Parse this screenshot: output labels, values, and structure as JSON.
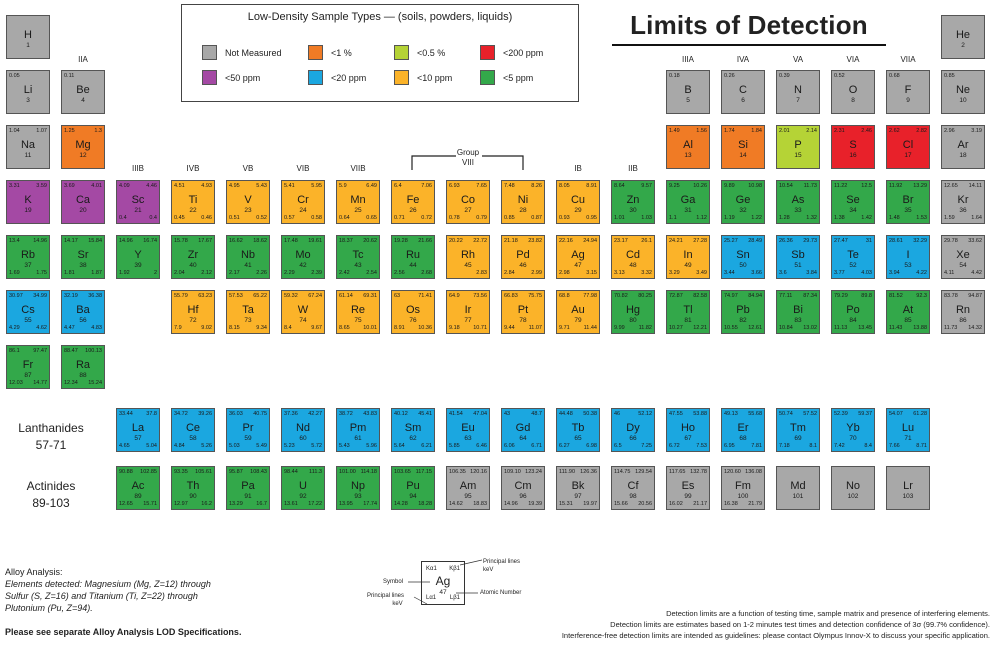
{
  "title": "Limits of Detection",
  "legend": {
    "title": "Low-Density Sample Types — (soils, powders, liquids)",
    "items": [
      {
        "label": "Not Measured",
        "color": "#a8a8a8"
      },
      {
        "label": "<1 %",
        "color": "#f07b25"
      },
      {
        "label": "<0.5 %",
        "color": "#b5d336"
      },
      {
        "label": "<200 ppm",
        "color": "#e8212a"
      },
      {
        "label": "<50 ppm",
        "color": "#a449a4"
      },
      {
        "label": "<20 ppm",
        "color": "#1ba7e0"
      },
      {
        "label": "<10 ppm",
        "color": "#fbb329"
      },
      {
        "label": "<5 ppm",
        "color": "#33a84a"
      }
    ]
  },
  "group_labels": {
    "IIA": "IIA",
    "IIIB": "IIIB",
    "IVB": "IVB",
    "VB": "VB",
    "VIB": "VIB",
    "VIIB": "VIIB",
    "group_viii_line1": "Group",
    "group_viii_line2": "VIII",
    "IB": "IB",
    "IIB": "IIB",
    "IIIA": "IIIA",
    "IVA": "IVA",
    "VA": "VA",
    "VIA": "VIA",
    "VIIA": "VIIA"
  },
  "series": {
    "lanthanides_name": "Lanthanides",
    "lanthanides_range": "57-71",
    "actinides_name": "Actinides",
    "actinides_range": "89-103"
  },
  "elements": [
    {
      "s": "H",
      "n": "1",
      "c": "#a8a8a8",
      "ka": "",
      "kb": "",
      "la": "",
      "lb": ""
    },
    {
      "s": "He",
      "n": "2",
      "c": "#a8a8a8",
      "ka": "",
      "kb": "",
      "la": "",
      "lb": ""
    },
    {
      "s": "Li",
      "n": "3",
      "c": "#a8a8a8",
      "ka": "0.05",
      "kb": "",
      "la": "",
      "lb": ""
    },
    {
      "s": "Be",
      "n": "4",
      "c": "#a8a8a8",
      "ka": "0.11",
      "kb": "",
      "la": "",
      "lb": ""
    },
    {
      "s": "B",
      "n": "5",
      "c": "#a8a8a8",
      "ka": "0.18",
      "kb": "",
      "la": "",
      "lb": ""
    },
    {
      "s": "C",
      "n": "6",
      "c": "#a8a8a8",
      "ka": "0.26",
      "kb": "",
      "la": "",
      "lb": ""
    },
    {
      "s": "N",
      "n": "7",
      "c": "#a8a8a8",
      "ka": "0.39",
      "kb": "",
      "la": "",
      "lb": ""
    },
    {
      "s": "O",
      "n": "8",
      "c": "#a8a8a8",
      "ka": "0.52",
      "kb": "",
      "la": "",
      "lb": ""
    },
    {
      "s": "F",
      "n": "9",
      "c": "#a8a8a8",
      "ka": "0.68",
      "kb": "",
      "la": "",
      "lb": ""
    },
    {
      "s": "Ne",
      "n": "10",
      "c": "#a8a8a8",
      "ka": "0.85",
      "kb": "",
      "la": "",
      "lb": ""
    },
    {
      "s": "Na",
      "n": "11",
      "c": "#a8a8a8",
      "ka": "1.04",
      "kb": "1.07",
      "la": "",
      "lb": ""
    },
    {
      "s": "Mg",
      "n": "12",
      "c": "#f07b25",
      "ka": "1.25",
      "kb": "1.3",
      "la": "",
      "lb": ""
    },
    {
      "s": "Al",
      "n": "13",
      "c": "#f07b25",
      "ka": "1.49",
      "kb": "1.56",
      "la": "",
      "lb": ""
    },
    {
      "s": "Si",
      "n": "14",
      "c": "#f07b25",
      "ka": "1.74",
      "kb": "1.84",
      "la": "",
      "lb": ""
    },
    {
      "s": "P",
      "n": "15",
      "c": "#b5d336",
      "ka": "2.01",
      "kb": "2.14",
      "la": "",
      "lb": ""
    },
    {
      "s": "S",
      "n": "16",
      "c": "#e8212a",
      "ka": "2.31",
      "kb": "2.46",
      "la": "",
      "lb": ""
    },
    {
      "s": "Cl",
      "n": "17",
      "c": "#e8212a",
      "ka": "2.62",
      "kb": "2.82",
      "la": "",
      "lb": ""
    },
    {
      "s": "Ar",
      "n": "18",
      "c": "#a8a8a8",
      "ka": "2.96",
      "kb": "3.19",
      "la": "",
      "lb": ""
    },
    {
      "s": "K",
      "n": "19",
      "c": "#a449a4",
      "ka": "3.31",
      "kb": "3.59",
      "la": "",
      "lb": ""
    },
    {
      "s": "Ca",
      "n": "20",
      "c": "#a449a4",
      "ka": "3.69",
      "kb": "4.01",
      "la": "",
      "lb": ""
    },
    {
      "s": "Sc",
      "n": "21",
      "c": "#a449a4",
      "ka": "4.09",
      "kb": "4.46",
      "la": "0.4",
      "lb": "0.4"
    },
    {
      "s": "Ti",
      "n": "22",
      "c": "#fbb329",
      "ka": "4.51",
      "kb": "4.93",
      "la": "0.45",
      "lb": "0.46"
    },
    {
      "s": "V",
      "n": "23",
      "c": "#fbb329",
      "ka": "4.95",
      "kb": "5.43",
      "la": "0.51",
      "lb": "0.52"
    },
    {
      "s": "Cr",
      "n": "24",
      "c": "#fbb329",
      "ka": "5.41",
      "kb": "5.95",
      "la": "0.57",
      "lb": "0.58"
    },
    {
      "s": "Mn",
      "n": "25",
      "c": "#fbb329",
      "ka": "5.9",
      "kb": "6.49",
      "la": "0.64",
      "lb": "0.65"
    },
    {
      "s": "Fe",
      "n": "26",
      "c": "#fbb329",
      "ka": "6.4",
      "kb": "7.06",
      "la": "0.71",
      "lb": "0.72"
    },
    {
      "s": "Co",
      "n": "27",
      "c": "#fbb329",
      "ka": "6.93",
      "kb": "7.65",
      "la": "0.78",
      "lb": "0.79"
    },
    {
      "s": "Ni",
      "n": "28",
      "c": "#fbb329",
      "ka": "7.48",
      "kb": "8.26",
      "la": "0.85",
      "lb": "0.87"
    },
    {
      "s": "Cu",
      "n": "29",
      "c": "#fbb329",
      "ka": "8.05",
      "kb": "8.91",
      "la": "0.93",
      "lb": "0.95"
    },
    {
      "s": "Zn",
      "n": "30",
      "c": "#33a84a",
      "ka": "8.64",
      "kb": "9.57",
      "la": "1.01",
      "lb": "1.03"
    },
    {
      "s": "Ga",
      "n": "31",
      "c": "#33a84a",
      "ka": "9.25",
      "kb": "10.26",
      "la": "1.1",
      "lb": "1.12"
    },
    {
      "s": "Ge",
      "n": "32",
      "c": "#33a84a",
      "ka": "9.89",
      "kb": "10.98",
      "la": "1.19",
      "lb": "1.22"
    },
    {
      "s": "As",
      "n": "33",
      "c": "#33a84a",
      "ka": "10.54",
      "kb": "11.73",
      "la": "1.28",
      "lb": "1.32"
    },
    {
      "s": "Se",
      "n": "34",
      "c": "#33a84a",
      "ka": "11.22",
      "kb": "12.5",
      "la": "1.38",
      "lb": "1.42"
    },
    {
      "s": "Br",
      "n": "35",
      "c": "#33a84a",
      "ka": "11.92",
      "kb": "13.29",
      "la": "1.48",
      "lb": "1.53"
    },
    {
      "s": "Kr",
      "n": "36",
      "c": "#a8a8a8",
      "ka": "12.65",
      "kb": "14.11",
      "la": "1.59",
      "lb": "1.64"
    },
    {
      "s": "Rb",
      "n": "37",
      "c": "#33a84a",
      "ka": "13.4",
      "kb": "14.96",
      "la": "1.69",
      "lb": "1.75"
    },
    {
      "s": "Sr",
      "n": "38",
      "c": "#33a84a",
      "ka": "14.17",
      "kb": "15.84",
      "la": "1.81",
      "lb": "1.87"
    },
    {
      "s": "Y",
      "n": "39",
      "c": "#33a84a",
      "ka": "14.96",
      "kb": "16.74",
      "la": "1.92",
      "lb": "2"
    },
    {
      "s": "Zr",
      "n": "40",
      "c": "#33a84a",
      "ka": "15.78",
      "kb": "17.67",
      "la": "2.04",
      "lb": "2.12"
    },
    {
      "s": "Nb",
      "n": "41",
      "c": "#33a84a",
      "ka": "16.62",
      "kb": "18.62",
      "la": "2.17",
      "lb": "2.26"
    },
    {
      "s": "Mo",
      "n": "42",
      "c": "#33a84a",
      "ka": "17.48",
      "kb": "19.61",
      "la": "2.29",
      "lb": "2.39"
    },
    {
      "s": "Tc",
      "n": "43",
      "c": "#33a84a",
      "ka": "18.37",
      "kb": "20.62",
      "la": "2.42",
      "lb": "2.54"
    },
    {
      "s": "Ru",
      "n": "44",
      "c": "#33a84a",
      "ka": "19.28",
      "kb": "21.66",
      "la": "2.56",
      "lb": "2.68"
    },
    {
      "s": "Rh",
      "n": "45",
      "c": "#fbb329",
      "ka": "20.22",
      "kb": "22.72",
      "la": "",
      "lb": "2.83"
    },
    {
      "s": "Pd",
      "n": "46",
      "c": "#fbb329",
      "ka": "21.18",
      "kb": "23.82",
      "la": "2.84",
      "lb": "2.99"
    },
    {
      "s": "Ag",
      "n": "47",
      "c": "#fbb329",
      "ka": "22.16",
      "kb": "24.94",
      "la": "2.98",
      "lb": "3.15"
    },
    {
      "s": "Cd",
      "n": "48",
      "c": "#fbb329",
      "ka": "23.17",
      "kb": "26.1",
      "la": "3.13",
      "lb": "3.32"
    },
    {
      "s": "In",
      "n": "49",
      "c": "#fbb329",
      "ka": "24.21",
      "kb": "27.28",
      "la": "3.29",
      "lb": "3.49"
    },
    {
      "s": "Sn",
      "n": "50",
      "c": "#1ba7e0",
      "ka": "25.27",
      "kb": "28.49",
      "la": "3.44",
      "lb": "3.66"
    },
    {
      "s": "Sb",
      "n": "51",
      "c": "#1ba7e0",
      "ka": "26.36",
      "kb": "29.73",
      "la": "3.6",
      "lb": "3.84"
    },
    {
      "s": "Te",
      "n": "52",
      "c": "#1ba7e0",
      "ka": "27.47",
      "kb": "31",
      "la": "3.77",
      "lb": "4.03"
    },
    {
      "s": "I",
      "n": "53",
      "c": "#1ba7e0",
      "ka": "28.61",
      "kb": "32.29",
      "la": "3.94",
      "lb": "4.22"
    },
    {
      "s": "Xe",
      "n": "54",
      "c": "#a8a8a8",
      "ka": "29.78",
      "kb": "33.62",
      "la": "4.11",
      "lb": "4.42"
    },
    {
      "s": "Cs",
      "n": "55",
      "c": "#1ba7e0",
      "ka": "30.97",
      "kb": "34.99",
      "la": "4.29",
      "lb": "4.62"
    },
    {
      "s": "Ba",
      "n": "56",
      "c": "#1ba7e0",
      "ka": "32.19",
      "kb": "36.38",
      "la": "4.47",
      "lb": "4.83"
    },
    {
      "s": "Hf",
      "n": "72",
      "c": "#fbb329",
      "ka": "55.79",
      "kb": "63.23",
      "la": "7.9",
      "lb": "9.02"
    },
    {
      "s": "Ta",
      "n": "73",
      "c": "#fbb329",
      "ka": "57.53",
      "kb": "65.22",
      "la": "8.15",
      "lb": "9.34"
    },
    {
      "s": "W",
      "n": "74",
      "c": "#fbb329",
      "ka": "59.32",
      "kb": "67.24",
      "la": "8.4",
      "lb": "9.67"
    },
    {
      "s": "Re",
      "n": "75",
      "c": "#fbb329",
      "ka": "61.14",
      "kb": "69.31",
      "la": "8.65",
      "lb": "10.01"
    },
    {
      "s": "Os",
      "n": "76",
      "c": "#fbb329",
      "ka": "63",
      "kb": "71.41",
      "la": "8.91",
      "lb": "10.36"
    },
    {
      "s": "Ir",
      "n": "77",
      "c": "#fbb329",
      "ka": "64.9",
      "kb": "73.56",
      "la": "9.18",
      "lb": "10.71"
    },
    {
      "s": "Pt",
      "n": "78",
      "c": "#fbb329",
      "ka": "66.83",
      "kb": "75.75",
      "la": "9.44",
      "lb": "11.07"
    },
    {
      "s": "Au",
      "n": "79",
      "c": "#fbb329",
      "ka": "68.8",
      "kb": "77.98",
      "la": "9.71",
      "lb": "11.44"
    },
    {
      "s": "Hg",
      "n": "80",
      "c": "#33a84a",
      "ka": "70.82",
      "kb": "80.25",
      "la": "9.99",
      "lb": "11.82"
    },
    {
      "s": "Tl",
      "n": "81",
      "c": "#33a84a",
      "ka": "72.87",
      "kb": "82.58",
      "la": "10.27",
      "lb": "12.21"
    },
    {
      "s": "Pb",
      "n": "82",
      "c": "#33a84a",
      "ka": "74.97",
      "kb": "84.94",
      "la": "10.55",
      "lb": "12.61"
    },
    {
      "s": "Bi",
      "n": "83",
      "c": "#33a84a",
      "ka": "77.11",
      "kb": "87.34",
      "la": "10.84",
      "lb": "13.02"
    },
    {
      "s": "Po",
      "n": "84",
      "c": "#33a84a",
      "ka": "79.29",
      "kb": "89.8",
      "la": "11.13",
      "lb": "13.45"
    },
    {
      "s": "At",
      "n": "85",
      "c": "#33a84a",
      "ka": "81.52",
      "kb": "92.3",
      "la": "11.43",
      "lb": "13.88"
    },
    {
      "s": "Rn",
      "n": "86",
      "c": "#a8a8a8",
      "ka": "83.78",
      "kb": "94.87",
      "la": "11.73",
      "lb": "14.32"
    },
    {
      "s": "Fr",
      "n": "87",
      "c": "#33a84a",
      "ka": "86.1",
      "kb": "97.47",
      "la": "12.03",
      "lb": "14.77"
    },
    {
      "s": "Ra",
      "n": "88",
      "c": "#33a84a",
      "ka": "88.47",
      "kb": "100.13",
      "la": "12.34",
      "lb": "15.24"
    },
    {
      "s": "La",
      "n": "57",
      "c": "#1ba7e0",
      "ka": "33.44",
      "kb": "37.8",
      "la": "4.65",
      "lb": "5.04"
    },
    {
      "s": "Ce",
      "n": "58",
      "c": "#1ba7e0",
      "ka": "34.72",
      "kb": "39.26",
      "la": "4.84",
      "lb": "5.26"
    },
    {
      "s": "Pr",
      "n": "59",
      "c": "#1ba7e0",
      "ka": "36.03",
      "kb": "40.75",
      "la": "5.03",
      "lb": "5.49"
    },
    {
      "s": "Nd",
      "n": "60",
      "c": "#1ba7e0",
      "ka": "37.36",
      "kb": "42.27",
      "la": "5.23",
      "lb": "5.72"
    },
    {
      "s": "Pm",
      "n": "61",
      "c": "#1ba7e0",
      "ka": "38.72",
      "kb": "43.83",
      "la": "5.43",
      "lb": "5.96"
    },
    {
      "s": "Sm",
      "n": "62",
      "c": "#1ba7e0",
      "ka": "40.12",
      "kb": "45.41",
      "la": "5.64",
      "lb": "6.21"
    },
    {
      "s": "Eu",
      "n": "63",
      "c": "#1ba7e0",
      "ka": "41.54",
      "kb": "47.04",
      "la": "5.85",
      "lb": "6.46"
    },
    {
      "s": "Gd",
      "n": "64",
      "c": "#1ba7e0",
      "ka": "43",
      "kb": "48.7",
      "la": "6.06",
      "lb": "6.71"
    },
    {
      "s": "Tb",
      "n": "65",
      "c": "#1ba7e0",
      "ka": "44.48",
      "kb": "50.38",
      "la": "6.27",
      "lb": "6.98"
    },
    {
      "s": "Dy",
      "n": "66",
      "c": "#1ba7e0",
      "ka": "46",
      "kb": "52.12",
      "la": "6.5",
      "lb": "7.25"
    },
    {
      "s": "Ho",
      "n": "67",
      "c": "#1ba7e0",
      "ka": "47.55",
      "kb": "53.88",
      "la": "6.72",
      "lb": "7.53"
    },
    {
      "s": "Er",
      "n": "68",
      "c": "#1ba7e0",
      "ka": "49.13",
      "kb": "55.68",
      "la": "6.95",
      "lb": "7.81"
    },
    {
      "s": "Tm",
      "n": "69",
      "c": "#1ba7e0",
      "ka": "50.74",
      "kb": "57.52",
      "la": "7.18",
      "lb": "8.1"
    },
    {
      "s": "Yb",
      "n": "70",
      "c": "#1ba7e0",
      "ka": "52.39",
      "kb": "59.37",
      "la": "7.42",
      "lb": "8.4"
    },
    {
      "s": "Lu",
      "n": "71",
      "c": "#1ba7e0",
      "ka": "54.07",
      "kb": "61.28",
      "la": "7.66",
      "lb": "8.71"
    },
    {
      "s": "Ac",
      "n": "89",
      "c": "#33a84a",
      "ka": "90.88",
      "kb": "102.85",
      "la": "12.65",
      "lb": "15.71"
    },
    {
      "s": "Th",
      "n": "90",
      "c": "#33a84a",
      "ka": "93.35",
      "kb": "105.61",
      "la": "12.97",
      "lb": "16.2"
    },
    {
      "s": "Pa",
      "n": "91",
      "c": "#33a84a",
      "ka": "95.87",
      "kb": "108.43",
      "la": "13.29",
      "lb": "16.7"
    },
    {
      "s": "U",
      "n": "92",
      "c": "#33a84a",
      "ka": "98.44",
      "kb": "111.3",
      "la": "13.61",
      "lb": "17.22"
    },
    {
      "s": "Np",
      "n": "93",
      "c": "#33a84a",
      "ka": "101.00",
      "kb": "114.18",
      "la": "13.95",
      "lb": "17.74"
    },
    {
      "s": "Pu",
      "n": "94",
      "c": "#33a84a",
      "ka": "103.65",
      "kb": "117.15",
      "la": "14.28",
      "lb": "18.28"
    },
    {
      "s": "Am",
      "n": "95",
      "c": "#a8a8a8",
      "ka": "106.35",
      "kb": "120.16",
      "la": "14.62",
      "lb": "18.83"
    },
    {
      "s": "Cm",
      "n": "96",
      "c": "#a8a8a8",
      "ka": "109.10",
      "kb": "123.24",
      "la": "14.96",
      "lb": "19.39"
    },
    {
      "s": "Bk",
      "n": "97",
      "c": "#a8a8a8",
      "ka": "111.90",
      "kb": "126.36",
      "la": "15.31",
      "lb": "19.97"
    },
    {
      "s": "Cf",
      "n": "98",
      "c": "#a8a8a8",
      "ka": "114.75",
      "kb": "129.54",
      "la": "15.66",
      "lb": "20.56"
    },
    {
      "s": "Es",
      "n": "99",
      "c": "#a8a8a8",
      "ka": "117.65",
      "kb": "132.78",
      "la": "16.02",
      "lb": "21.17"
    },
    {
      "s": "Fm",
      "n": "100",
      "c": "#a8a8a8",
      "ka": "120.60",
      "kb": "136.08",
      "la": "16.38",
      "lb": "21.79"
    },
    {
      "s": "Md",
      "n": "101",
      "c": "#a8a8a8",
      "ka": "",
      "kb": "",
      "la": "",
      "lb": ""
    },
    {
      "s": "No",
      "n": "102",
      "c": "#a8a8a8",
      "ka": "",
      "kb": "",
      "la": "",
      "lb": ""
    },
    {
      "s": "Lr",
      "n": "103",
      "c": "#a8a8a8",
      "ka": "",
      "kb": "",
      "la": "",
      "lb": ""
    }
  ],
  "alloy": {
    "heading": "Alloy Analysis:",
    "line1": "Elements detected: Magnesium (Mg, Z=12) through",
    "line2": "Sulfur (S, Z=16) and Titanium (Ti, Z=22) through",
    "line3": "Plutonium (Pu, Z=94).",
    "see_note": "Please see separate Alloy Analysis LOD Specifications."
  },
  "key": {
    "symbol": "Ag",
    "number": "47",
    "ka": "Kα1",
    "kb": "Kβ1",
    "la": "Lα1",
    "lb": "Lβ1",
    "symbol_label": "Symbol",
    "principal_top_1": "Principal lines",
    "principal_top_2": "keV",
    "principal_bottom_1": "Principal lines",
    "principal_bottom_2": "keV",
    "atomic_number_label": "Atomic Number"
  },
  "footnotes": [
    "Detection limits are a function of testing time, sample matrix and presence of interfering elements.",
    "Detection limits are estimates based on 1-2 minutes test times and detection confidence of 3σ (99.7% confidence).",
    "Interference-free detection limits are intended as guidelines: please contact Olympus Innov-X to discuss your specific application."
  ]
}
